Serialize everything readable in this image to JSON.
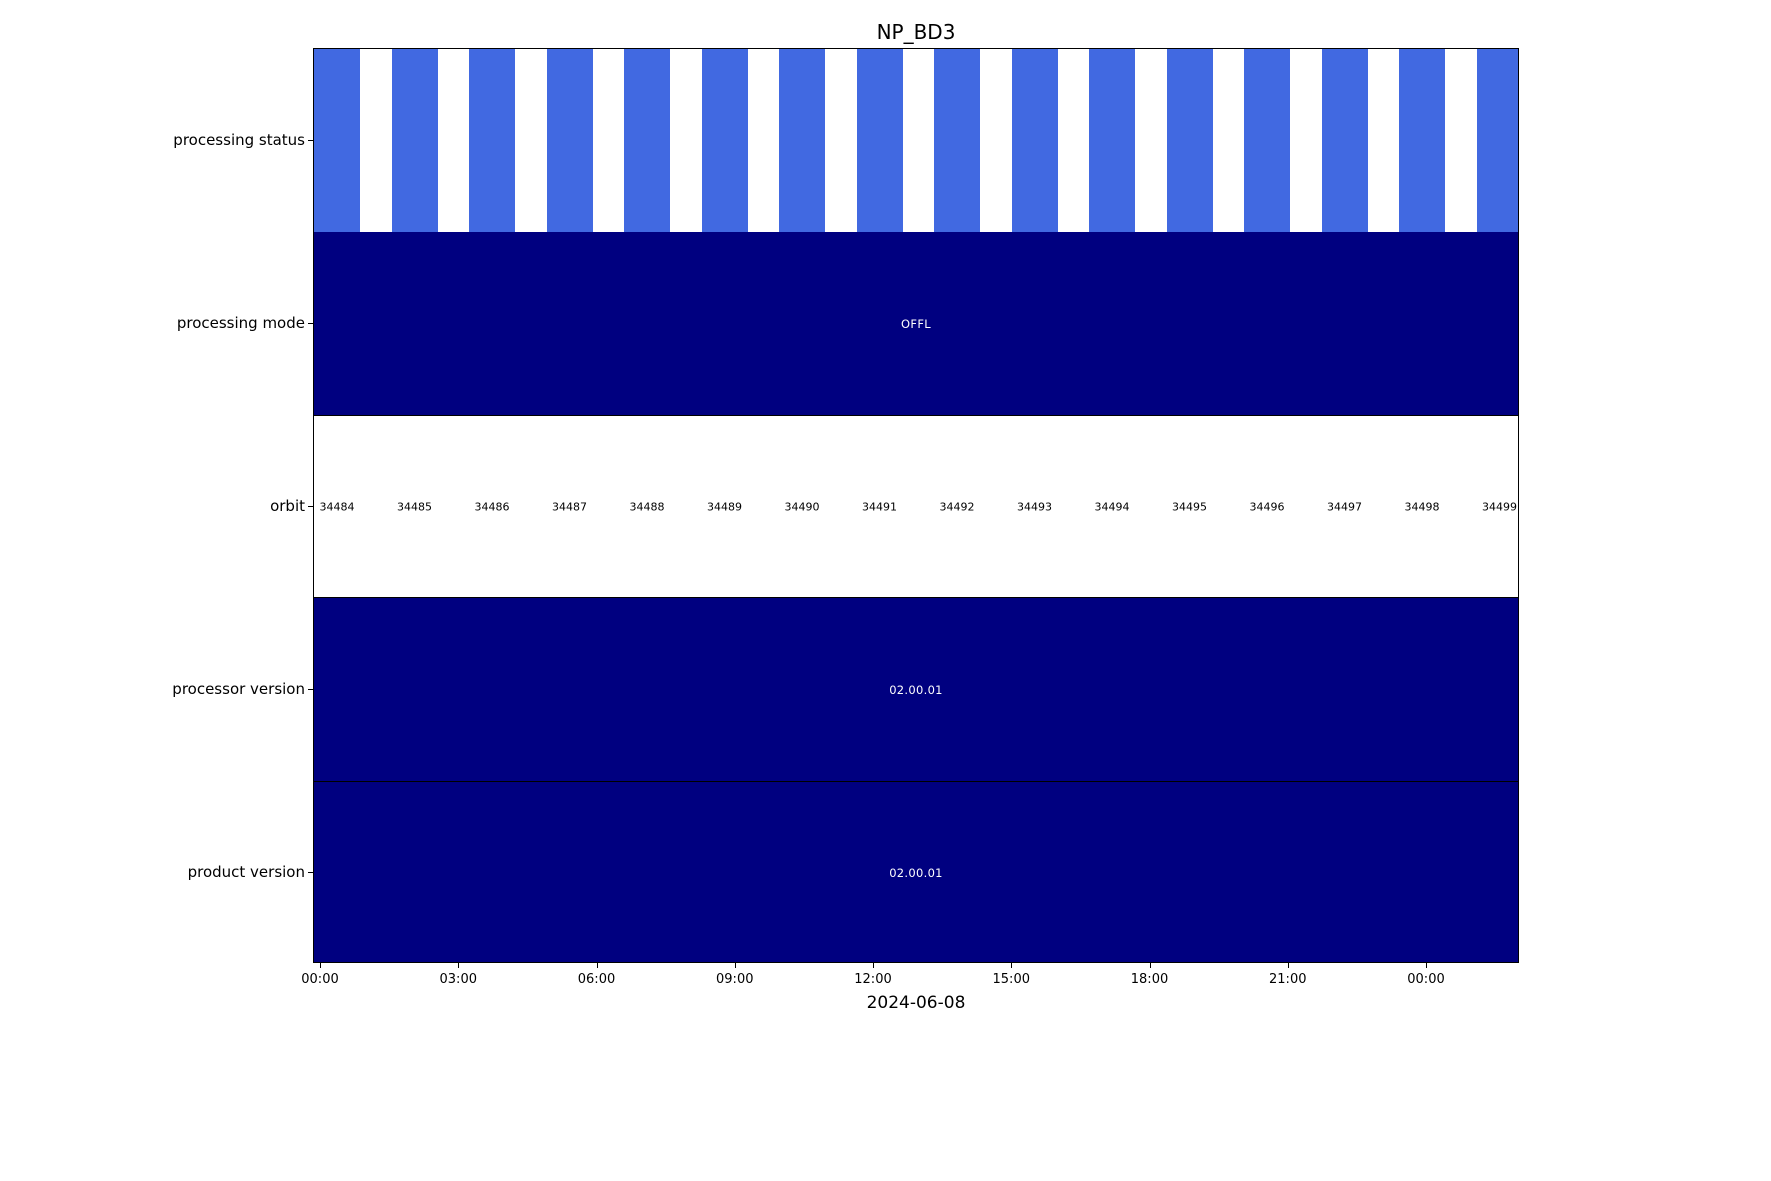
{
  "chart_data": {
    "type": "timeline",
    "title": "NP_BD3",
    "xlabel": "2024-06-08",
    "x_tick_labels": [
      "00:00",
      "03:00",
      "06:00",
      "09:00",
      "12:00",
      "15:00",
      "18:00",
      "21:00",
      "00:00"
    ],
    "colors": {
      "orbit_bar": "#4169E1",
      "band": "#000080",
      "band_text": "#ffffff",
      "frame": "#000000",
      "background": "#ffffff"
    },
    "legend": "none",
    "grid": false,
    "rows": [
      {
        "label": "processing status",
        "kind": "orbit-bars"
      },
      {
        "label": "processing mode",
        "kind": "band",
        "text": "OFFL"
      },
      {
        "label": "orbit",
        "kind": "orbit-labels",
        "orbits": [
          "34484",
          "34485",
          "34486",
          "34487",
          "34488",
          "34489",
          "34490",
          "34491",
          "34492",
          "34493",
          "34494",
          "34495",
          "34496",
          "34497",
          "34498",
          "34499"
        ]
      },
      {
        "label": "processor version",
        "kind": "band",
        "text": "02.00.01"
      },
      {
        "label": "product version",
        "kind": "band",
        "text": "02.00.01"
      }
    ]
  }
}
